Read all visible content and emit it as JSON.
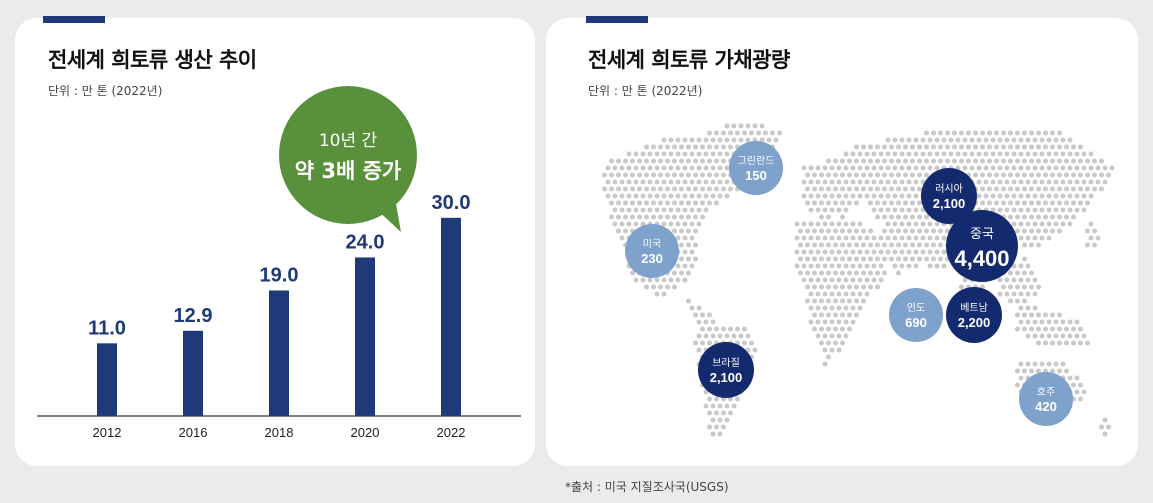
{
  "left_panel": {
    "title": "전세계 희토류 생산 추이",
    "unit": "단위 : 만 톤 (2022년)",
    "callout_line1": "10년 간",
    "callout_line2": "약 3배 증가",
    "accent_color": "#1e3a78",
    "bubble_color": "#58903c",
    "bar_color": "#1e3a78"
  },
  "right_panel": {
    "title": "전세계 희토류 가채광량",
    "unit": "단위 : 만 톤 (2022년)",
    "accent_color": "#1e3a78",
    "dark_color": "#142a6e",
    "light_color": "#7fa2cc"
  },
  "source": "*출처 : 미국 지질조사국(USGS)",
  "chart_data": [
    {
      "type": "bar",
      "title": "전세계 희토류 생산 추이",
      "categories": [
        "2012",
        "2016",
        "2018",
        "2020",
        "2022"
      ],
      "values": [
        11.0,
        12.9,
        19.0,
        24.0,
        30.0
      ],
      "value_labels": [
        "11.0",
        "12.9",
        "19.0",
        "24.0",
        "30.0"
      ],
      "ylim": [
        0,
        33
      ],
      "xlabel": "",
      "ylabel": "",
      "grid": false
    },
    {
      "type": "map",
      "title": "전세계 희토류 가채광량",
      "countries": [
        {
          "name": "그린란드",
          "value": 150,
          "label": "150",
          "style": "light"
        },
        {
          "name": "미국",
          "value": 230,
          "label": "230",
          "style": "light"
        },
        {
          "name": "러시아",
          "value": 2100,
          "label": "2,100",
          "style": "dark"
        },
        {
          "name": "중국",
          "value": 4400,
          "label": "4,400",
          "style": "dark"
        },
        {
          "name": "인도",
          "value": 690,
          "label": "690",
          "style": "light"
        },
        {
          "name": "베트남",
          "value": 2200,
          "label": "2,200",
          "style": "dark"
        },
        {
          "name": "브라질",
          "value": 2100,
          "label": "2,100",
          "style": "dark"
        },
        {
          "name": "호주",
          "value": 420,
          "label": "420",
          "style": "light"
        }
      ]
    }
  ]
}
